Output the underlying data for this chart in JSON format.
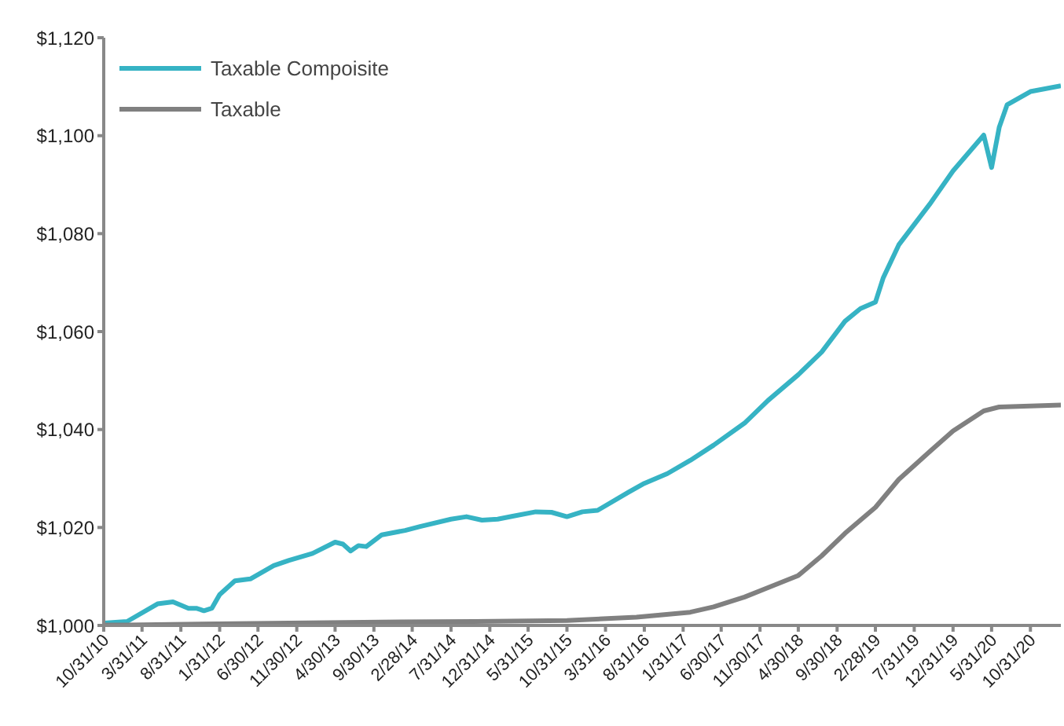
{
  "chart_data": {
    "type": "line",
    "xlim": [
      "2010-10-31",
      "2021-02-28"
    ],
    "xticks": [
      {
        "value": "2010-10-31",
        "label": "10/31/10"
      },
      {
        "value": "2011-03-31",
        "label": "3/31/11"
      },
      {
        "value": "2011-08-31",
        "label": "8/31/11"
      },
      {
        "value": "2012-01-31",
        "label": "1/31/12"
      },
      {
        "value": "2012-06-30",
        "label": "6/30/12"
      },
      {
        "value": "2012-11-30",
        "label": "11/30/12"
      },
      {
        "value": "2013-04-30",
        "label": "4/30/13"
      },
      {
        "value": "2013-09-30",
        "label": "9/30/13"
      },
      {
        "value": "2014-02-28",
        "label": "2/28/14"
      },
      {
        "value": "2014-07-31",
        "label": "7/31/14"
      },
      {
        "value": "2014-12-31",
        "label": "12/31/14"
      },
      {
        "value": "2015-05-31",
        "label": "5/31/15"
      },
      {
        "value": "2015-10-31",
        "label": "10/31/15"
      },
      {
        "value": "2016-03-31",
        "label": "3/31/16"
      },
      {
        "value": "2016-08-31",
        "label": "8/31/16"
      },
      {
        "value": "2017-01-31",
        "label": "1/31/17"
      },
      {
        "value": "2017-06-30",
        "label": "6/30/17"
      },
      {
        "value": "2017-11-30",
        "label": "11/30/17"
      },
      {
        "value": "2018-04-30",
        "label": "4/30/18"
      },
      {
        "value": "2018-09-30",
        "label": "9/30/18"
      },
      {
        "value": "2019-02-28",
        "label": "2/28/19"
      },
      {
        "value": "2019-07-31",
        "label": "7/31/19"
      },
      {
        "value": "2019-12-31",
        "label": "12/31/19"
      },
      {
        "value": "2020-05-31",
        "label": "5/31/20"
      },
      {
        "value": "2020-10-31",
        "label": "10/31/20"
      }
    ],
    "ylim": [
      1000,
      1120
    ],
    "yticks": [
      {
        "value": 1000,
        "label": "$1,000"
      },
      {
        "value": 1020,
        "label": "$1,020"
      },
      {
        "value": 1040,
        "label": "$1,040"
      },
      {
        "value": 1060,
        "label": "$1,060"
      },
      {
        "value": 1080,
        "label": "$1,080"
      },
      {
        "value": 1100,
        "label": "$1,100"
      },
      {
        "value": 1120,
        "label": "$1,120"
      }
    ],
    "grid": false,
    "legend": "top left",
    "marker": "none",
    "line_style": "solid",
    "series": [
      {
        "name": "Taxable Compoisite",
        "color": "#36b3c4",
        "x": [
          "2010-10-31",
          "2011-01-31",
          "2011-05-31",
          "2011-07-31",
          "2011-09-30",
          "2011-10-31",
          "2011-11-30",
          "2011-12-31",
          "2012-01-31",
          "2012-03-31",
          "2012-05-31",
          "2012-08-31",
          "2012-10-31",
          "2013-01-31",
          "2013-04-30",
          "2013-05-31",
          "2013-06-30",
          "2013-07-31",
          "2013-08-31",
          "2013-10-31",
          "2014-01-31",
          "2014-03-31",
          "2014-07-31",
          "2014-09-30",
          "2014-11-30",
          "2015-01-31",
          "2015-03-31",
          "2015-06-30",
          "2015-08-31",
          "2015-10-31",
          "2015-12-31",
          "2016-02-29",
          "2016-06-30",
          "2016-08-31",
          "2016-11-30",
          "2017-02-28",
          "2017-05-31",
          "2017-09-30",
          "2017-12-31",
          "2018-04-30",
          "2018-07-31",
          "2018-10-31",
          "2018-12-31",
          "2019-02-28",
          "2019-03-31",
          "2019-05-31",
          "2019-09-30",
          "2019-12-31",
          "2020-04-30",
          "2020-05-31",
          "2020-06-30",
          "2020-07-31",
          "2020-10-31",
          "2021-02-28"
        ],
        "values": [
          1000.5,
          1000.8,
          1004.4,
          1004.8,
          1003.5,
          1003.5,
          1003.0,
          1003.5,
          1006.3,
          1009.1,
          1009.5,
          1012.2,
          1013.3,
          1014.7,
          1017.0,
          1016.6,
          1015.2,
          1016.3,
          1016.1,
          1018.5,
          1019.4,
          1020.2,
          1021.7,
          1022.2,
          1021.5,
          1021.7,
          1022.3,
          1023.2,
          1023.1,
          1022.2,
          1023.2,
          1023.5,
          1027.2,
          1029.0,
          1031.0,
          1033.7,
          1036.8,
          1041.3,
          1045.9,
          1051.2,
          1055.8,
          1062.1,
          1064.7,
          1066.0,
          1071.0,
          1077.7,
          1086.0,
          1092.8,
          1100.1,
          1093.5,
          1101.7,
          1106.3,
          1109.0,
          1110.2
        ]
      },
      {
        "name": "Taxable",
        "color": "#808080",
        "x": [
          "2010-10-31",
          "2011-01-31",
          "2012-10-31",
          "2013-10-31",
          "2014-10-31",
          "2015-10-31",
          "2016-07-31",
          "2017-02-28",
          "2017-05-31",
          "2017-09-30",
          "2017-12-31",
          "2018-04-30",
          "2018-07-31",
          "2018-10-31",
          "2019-02-28",
          "2019-05-31",
          "2019-09-30",
          "2019-12-31",
          "2020-04-30",
          "2020-06-30",
          "2021-02-28"
        ],
        "values": [
          1000.1,
          1000.1,
          1000.5,
          1000.7,
          1000.8,
          1001.0,
          1001.7,
          1002.7,
          1003.8,
          1005.8,
          1007.7,
          1010.2,
          1014.2,
          1018.8,
          1024.1,
          1029.8,
          1035.5,
          1039.7,
          1043.8,
          1044.6,
          1045.0
        ]
      }
    ]
  }
}
